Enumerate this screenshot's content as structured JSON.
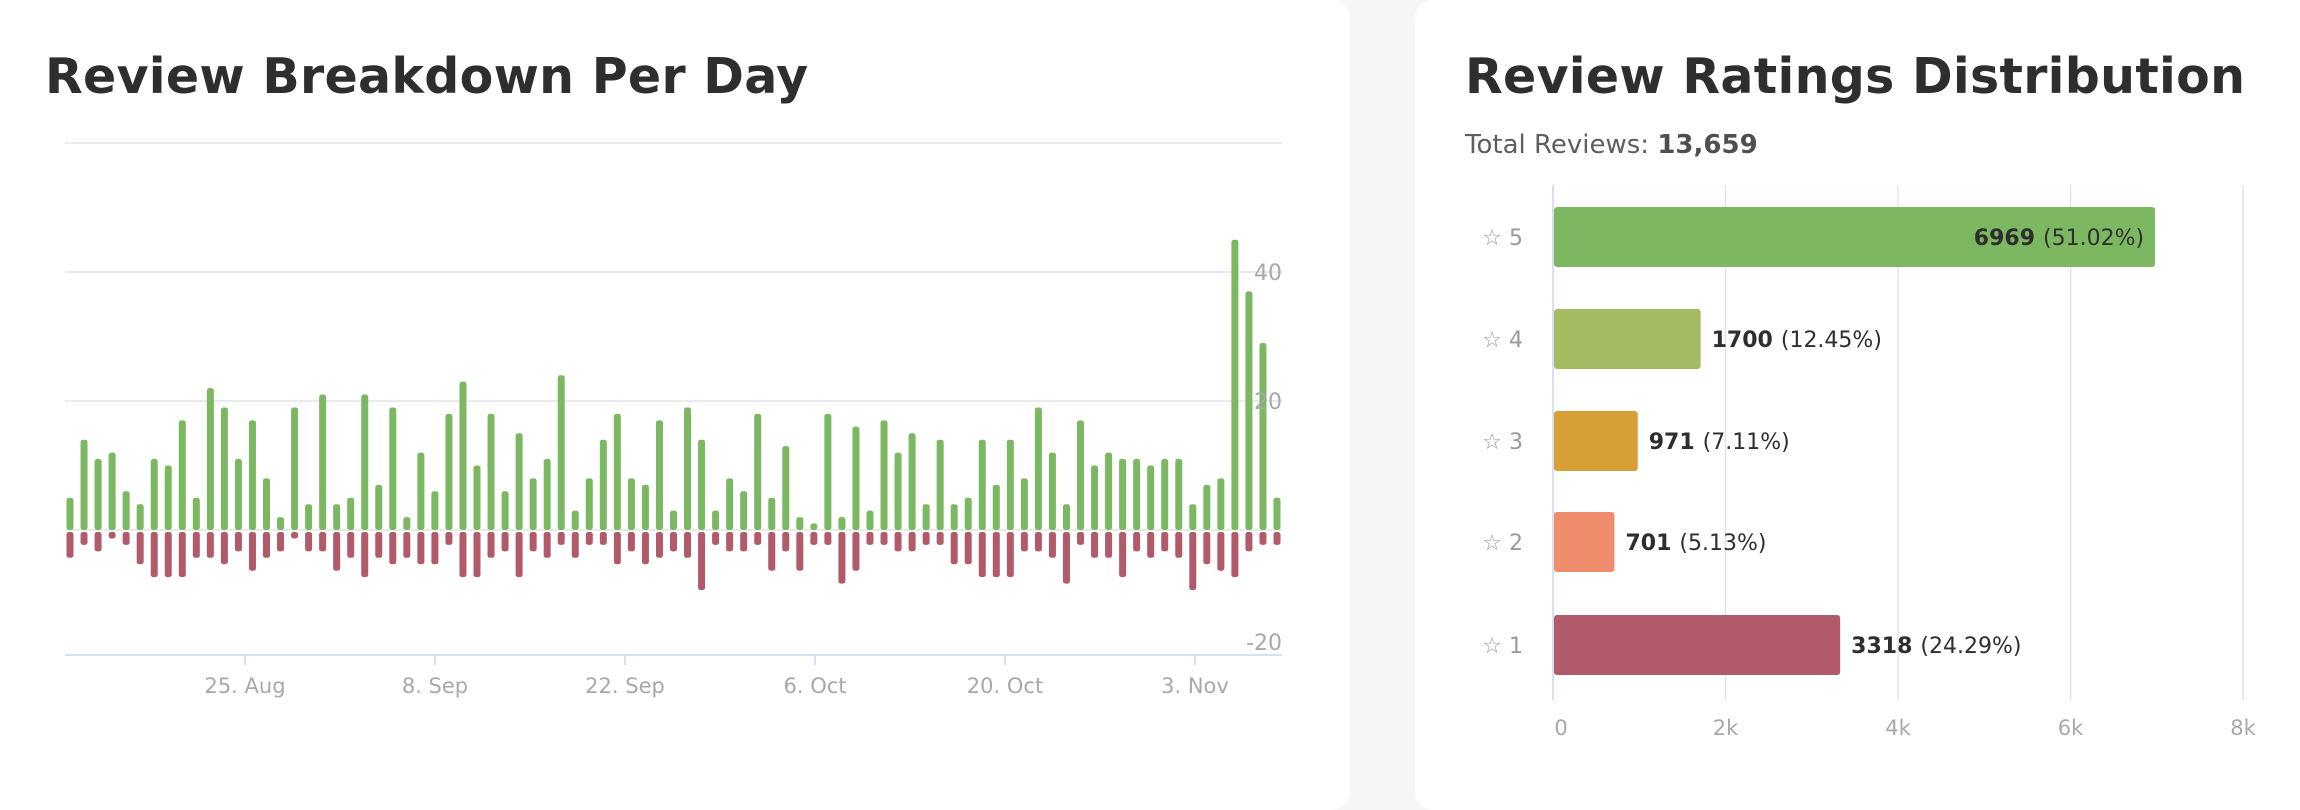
{
  "left_panel": {
    "title": "Review Breakdown Per Day"
  },
  "right_panel": {
    "title": "Review Ratings Distribution",
    "total_label": "Total Reviews:",
    "total_value": "13,659"
  },
  "colors": {
    "positive": "#7cb862",
    "negative": "#b05a6a",
    "star5": "#7cb862",
    "star4": "#a5bb62",
    "star3": "#d89e38",
    "star2": "#ef8c6b",
    "star1": "#b05a6a"
  },
  "chart_data": [
    {
      "type": "bar",
      "subtype": "diverging-daily-columns",
      "x_tick_labels": [
        "25. Aug",
        "8. Sep",
        "22. Sep",
        "6. Oct",
        "20. Oct",
        "3. Nov"
      ],
      "y_tick_labels": [
        "40",
        "20",
        "-20"
      ],
      "ylim": [
        -20,
        60
      ],
      "grid": true,
      "legend": "none",
      "series": [
        {
          "values": [
            5,
            14,
            11,
            12,
            6,
            4,
            11,
            10,
            17,
            5,
            22,
            19,
            11,
            17,
            8,
            2,
            19,
            4,
            21,
            4,
            5,
            21,
            7,
            19,
            2,
            12,
            6,
            18,
            23,
            10,
            18,
            6,
            15,
            8,
            11,
            24,
            3,
            8,
            14,
            18,
            8,
            7,
            17,
            3,
            19,
            14,
            3,
            8,
            6,
            18,
            5,
            13,
            2,
            1,
            18,
            2,
            16,
            3,
            17,
            12,
            15,
            4,
            14,
            4,
            5,
            14,
            7,
            14,
            8,
            19,
            12,
            4,
            17,
            10,
            12,
            11,
            11,
            10,
            11,
            11,
            4,
            7,
            8,
            45,
            37,
            29,
            5
          ]
        },
        {
          "values": [
            -4,
            -2,
            -3,
            -1,
            -2,
            -5,
            -7,
            -7,
            -7,
            -4,
            -4,
            -5,
            -3,
            -6,
            -4,
            -3,
            -1,
            -3,
            -3,
            -6,
            -4,
            -7,
            -4,
            -5,
            -4,
            -5,
            -5,
            -2,
            -7,
            -7,
            -4,
            -3,
            -7,
            -3,
            -4,
            -2,
            -4,
            -2,
            -2,
            -5,
            -3,
            -5,
            -4,
            -3,
            -4,
            -9,
            -2,
            -3,
            -3,
            -2,
            -6,
            -3,
            -6,
            -2,
            -2,
            -8,
            -6,
            -2,
            -2,
            -3,
            -3,
            -2,
            -2,
            -5,
            -5,
            -7,
            -7,
            -7,
            -3,
            -3,
            -4,
            -8,
            -2,
            -4,
            -4,
            -7,
            -3,
            -4,
            -3,
            -4,
            -9,
            -5,
            -6,
            -7,
            -3,
            -2,
            -2
          ]
        }
      ]
    },
    {
      "type": "bar",
      "orientation": "horizontal",
      "categories": [
        "☆ 5",
        "☆ 4",
        "☆ 3",
        "☆ 2",
        "☆ 1"
      ],
      "values": [
        6969,
        1700,
        971,
        701,
        3318
      ],
      "value_labels": [
        "6969",
        "1700",
        "971",
        "701",
        "3318"
      ],
      "percent_labels": [
        "(51.02%)",
        "(12.45%)",
        "(7.11%)",
        "(5.13%)",
        "(24.29%)"
      ],
      "x_tick_labels": [
        "0",
        "2k",
        "4k",
        "6k",
        "8k"
      ],
      "xlim": [
        0,
        8000
      ],
      "grid": true,
      "legend": "none"
    }
  ]
}
